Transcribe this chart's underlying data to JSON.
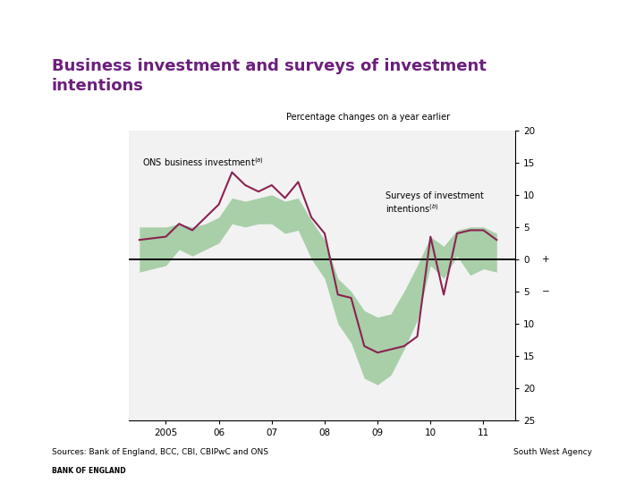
{
  "title": "Business investment and surveys of investment\nintentions",
  "title_color": "#6B1F7C",
  "subtitle": "Percentage changes on a year earlier",
  "sources_text": "Sources: Bank of England, BCC, CBI, CBIPwC and ONS",
  "agency_text": "South West Agency",
  "background_color": "#ffffff",
  "chart_bg": "#f2f2f2",
  "line_color": "#8B2252",
  "fill_color": "#90C490",
  "ylim_min": -25,
  "ylim_max": 20,
  "yticks": [
    20,
    15,
    10,
    5,
    0,
    -5,
    -10,
    -15,
    -20,
    -25
  ],
  "ytick_labels": [
    "20",
    "15",
    "10",
    "5",
    "0",
    "5",
    "10",
    "15",
    "20",
    "25"
  ],
  "label_ons": "ONS business investment",
  "label_surveys": "Surveys of investment\nintentions",
  "ons_line_x": [
    2004.5,
    2005.0,
    2005.25,
    2005.5,
    2005.75,
    2006.0,
    2006.25,
    2006.5,
    2006.75,
    2007.0,
    2007.25,
    2007.5,
    2007.75,
    2008.0,
    2008.25,
    2008.5,
    2008.75,
    2009.0,
    2009.25,
    2009.5,
    2009.75,
    2010.0,
    2010.25,
    2010.5,
    2010.75,
    2011.0,
    2011.25
  ],
  "ons_line_y": [
    3.0,
    3.5,
    5.5,
    4.5,
    6.5,
    8.5,
    13.5,
    11.5,
    10.5,
    11.5,
    9.5,
    12.0,
    6.5,
    4.0,
    -5.5,
    -6.0,
    -13.5,
    -14.5,
    -14.0,
    -13.5,
    -12.0,
    3.5,
    -5.5,
    4.0,
    4.5,
    4.5,
    3.0
  ],
  "band_upper_x": [
    2004.5,
    2005.0,
    2005.25,
    2005.5,
    2005.75,
    2006.0,
    2006.25,
    2006.5,
    2006.75,
    2007.0,
    2007.25,
    2007.5,
    2007.75,
    2008.0,
    2008.25,
    2008.5,
    2008.75,
    2009.0,
    2009.25,
    2009.5,
    2009.75,
    2010.0,
    2010.25,
    2010.5,
    2010.75,
    2011.0,
    2011.25
  ],
  "band_upper_y": [
    5.0,
    5.0,
    5.5,
    5.0,
    5.5,
    6.5,
    9.5,
    9.0,
    9.5,
    10.0,
    9.0,
    9.5,
    6.0,
    3.0,
    -3.0,
    -5.0,
    -8.0,
    -9.0,
    -8.5,
    -5.0,
    -1.0,
    3.5,
    2.0,
    4.5,
    5.0,
    5.0,
    4.0
  ],
  "band_lower_x": [
    2004.5,
    2005.0,
    2005.25,
    2005.5,
    2005.75,
    2006.0,
    2006.25,
    2006.5,
    2006.75,
    2007.0,
    2007.25,
    2007.5,
    2007.75,
    2008.0,
    2008.25,
    2008.5,
    2008.75,
    2009.0,
    2009.25,
    2009.5,
    2009.75,
    2010.0,
    2010.25,
    2010.5,
    2010.75,
    2011.0,
    2011.25
  ],
  "band_lower_y": [
    -2.0,
    -1.0,
    1.5,
    0.5,
    1.5,
    2.5,
    5.5,
    5.0,
    5.5,
    5.5,
    4.0,
    4.5,
    0.0,
    -3.0,
    -10.0,
    -13.0,
    -18.5,
    -19.5,
    -18.0,
    -14.0,
    -9.5,
    -1.0,
    -3.0,
    0.5,
    -2.5,
    -1.5,
    -2.0
  ]
}
